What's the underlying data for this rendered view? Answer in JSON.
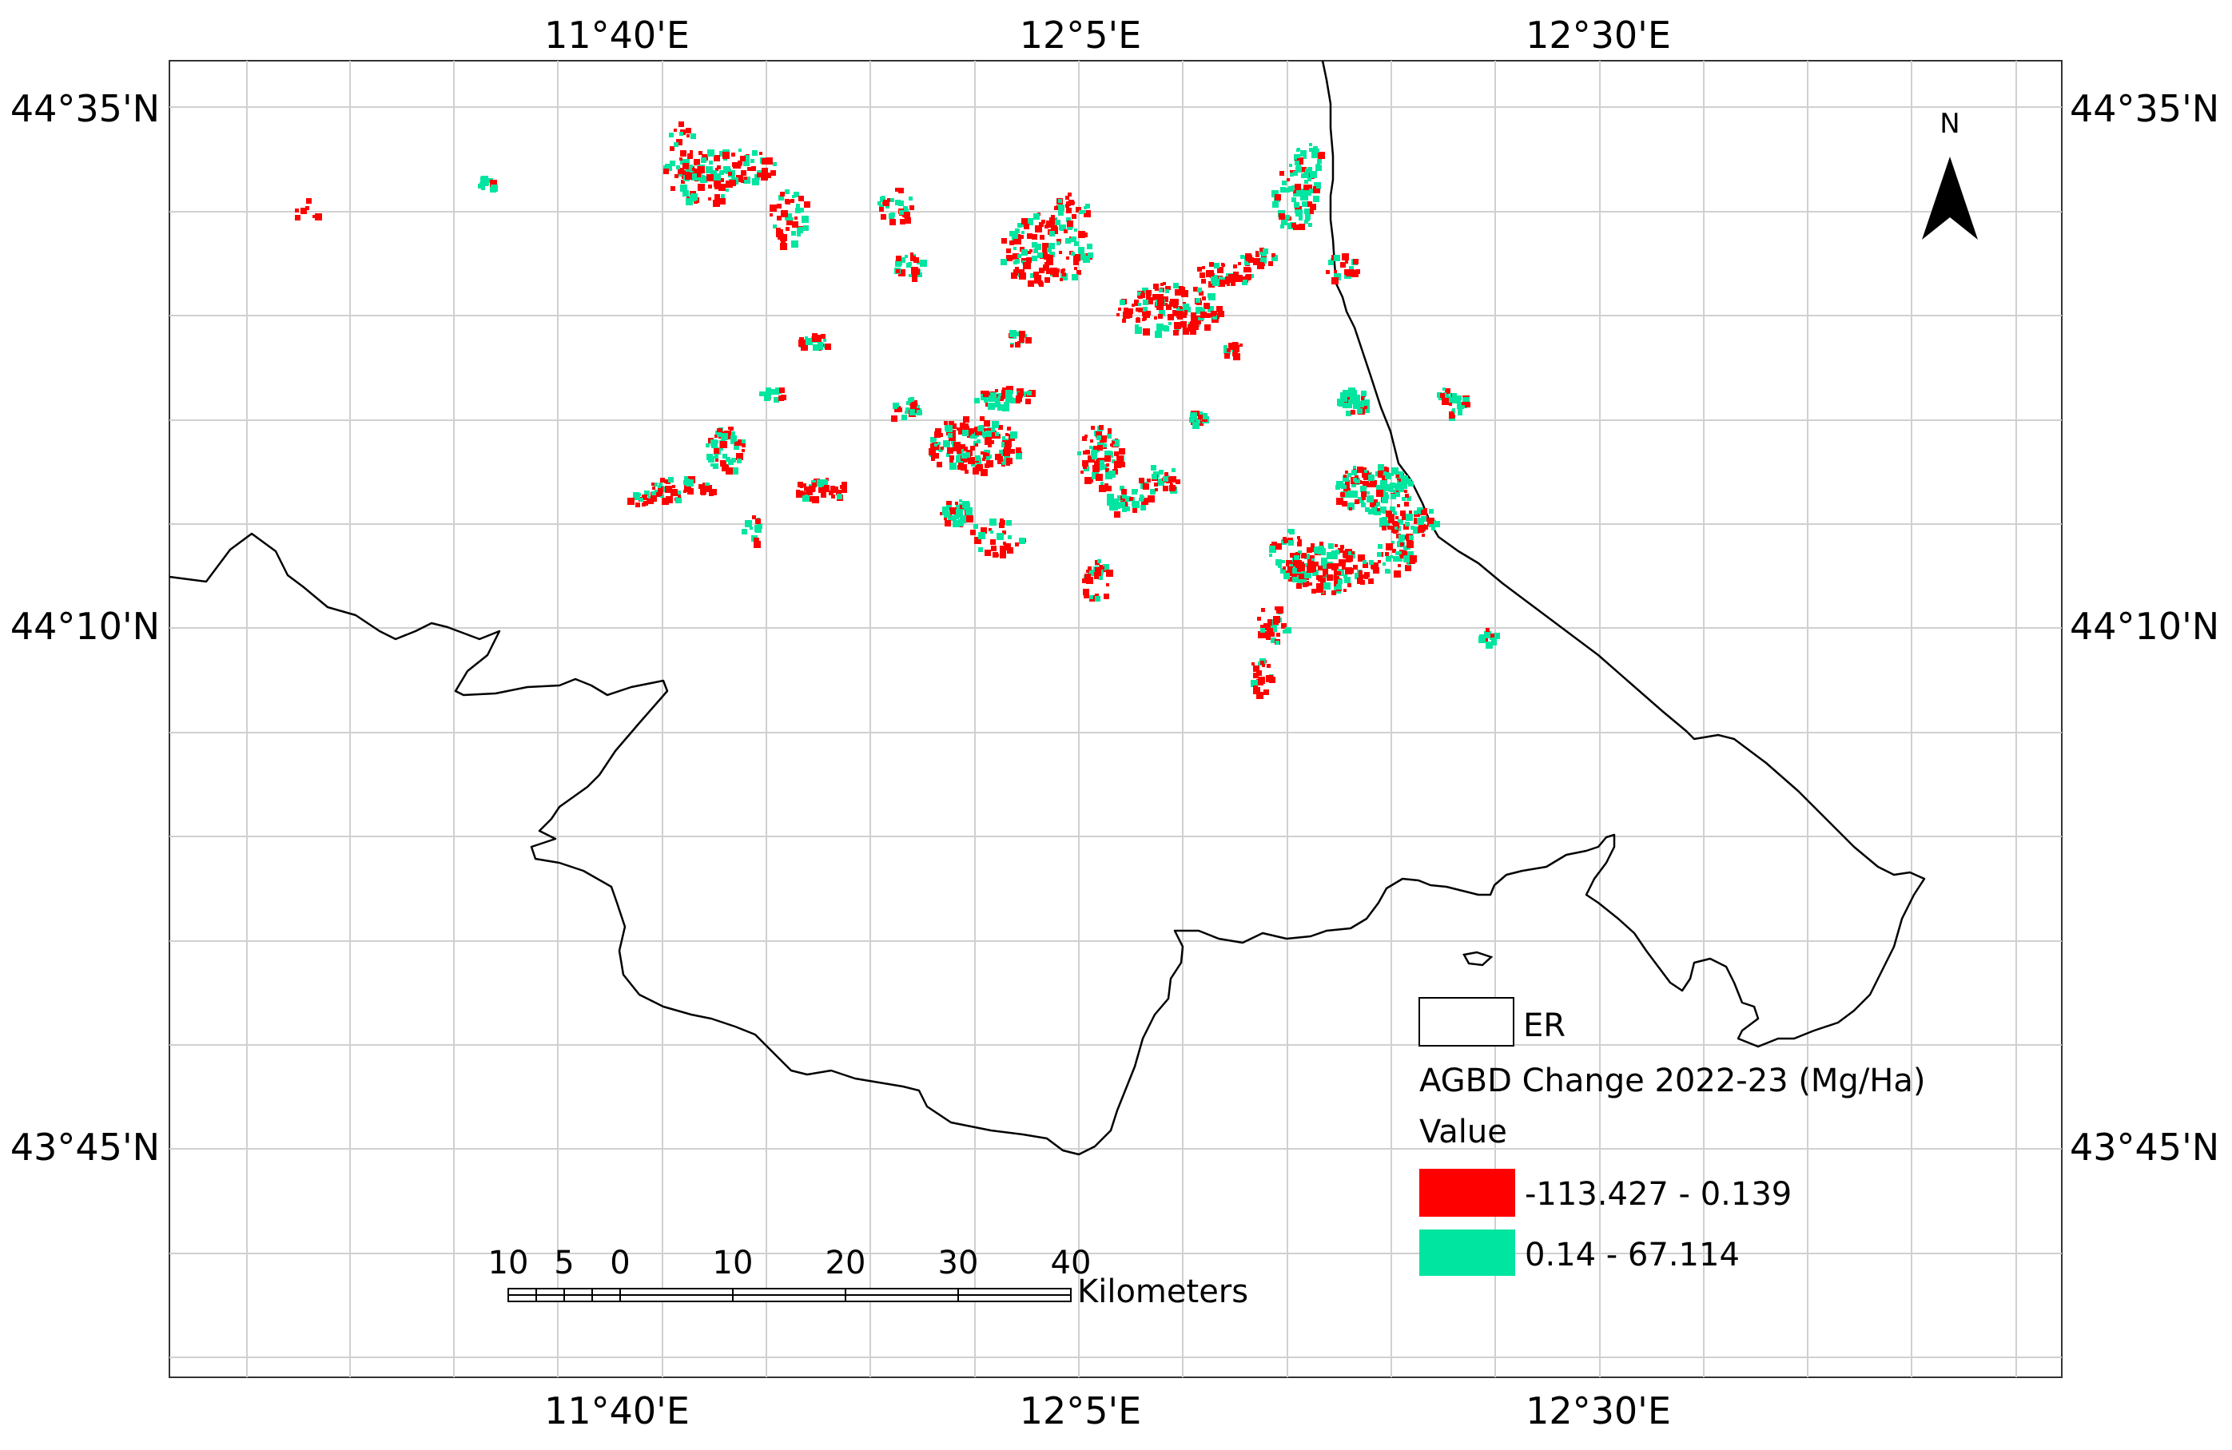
{
  "map": {
    "lon_ticks": [
      "11°40'E",
      "12°5'E",
      "12°30'E"
    ],
    "lat_ticks": [
      "44°35'N",
      "44°10'N",
      "43°45'N"
    ],
    "north_arrow": {
      "label": "N",
      "icon": "north-arrow-icon"
    },
    "scale_bar": {
      "labels": [
        "10",
        "5",
        "0",
        "10",
        "20",
        "30",
        "40"
      ],
      "unit": "Kilometers"
    },
    "legend": {
      "boundary_label": "ER",
      "layer_title": "AGBD Change 2022-23 (Mg/Ha)",
      "value_heading": "Value",
      "classes": [
        {
          "label": "-113.427 - 0.139",
          "color": "#ff0000"
        },
        {
          "label": "0.14 - 67.114",
          "color": "#00e5a0"
        }
      ]
    },
    "colors": {
      "loss": "#ff0000",
      "gain": "#00e5a0",
      "boundary": "#000000",
      "graticule": "#d0d0d0"
    }
  }
}
